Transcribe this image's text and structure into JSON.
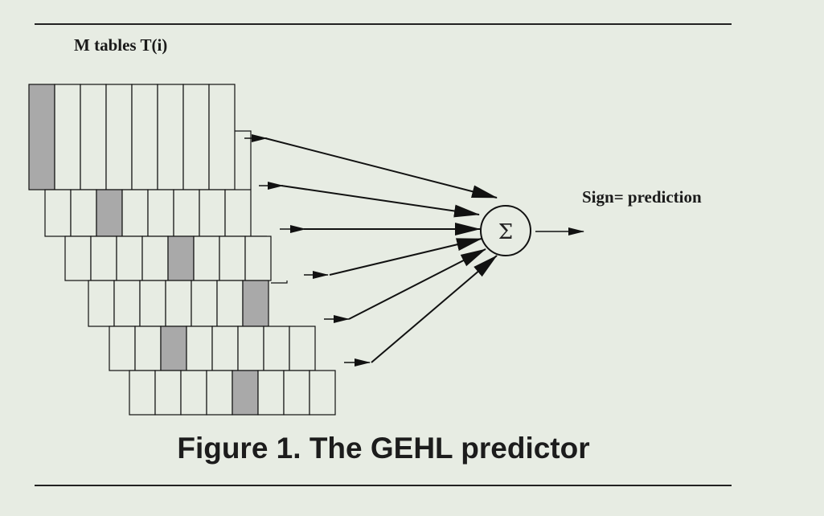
{
  "figure": {
    "tables_label": "M tables T(i)",
    "output_label": "Sign= prediction",
    "sum_symbol": "Σ",
    "caption": "Figure 1. The GEHL predictor"
  },
  "tables": [
    {
      "cells": 8,
      "highlighted_cell": 0
    },
    {
      "cells": 8,
      "highlighted_cell": 2
    },
    {
      "cells": 8,
      "highlighted_cell": 4
    },
    {
      "cells": 7,
      "highlighted_cell": 6
    },
    {
      "cells": 8,
      "highlighted_cell": 2
    },
    {
      "cells": 8,
      "highlighted_cell": 4
    }
  ],
  "colors": {
    "background": "#e7ece3",
    "cell_fill": "#e7ece3",
    "highlight_fill": "#a9a9a9",
    "stroke": "#111111"
  }
}
